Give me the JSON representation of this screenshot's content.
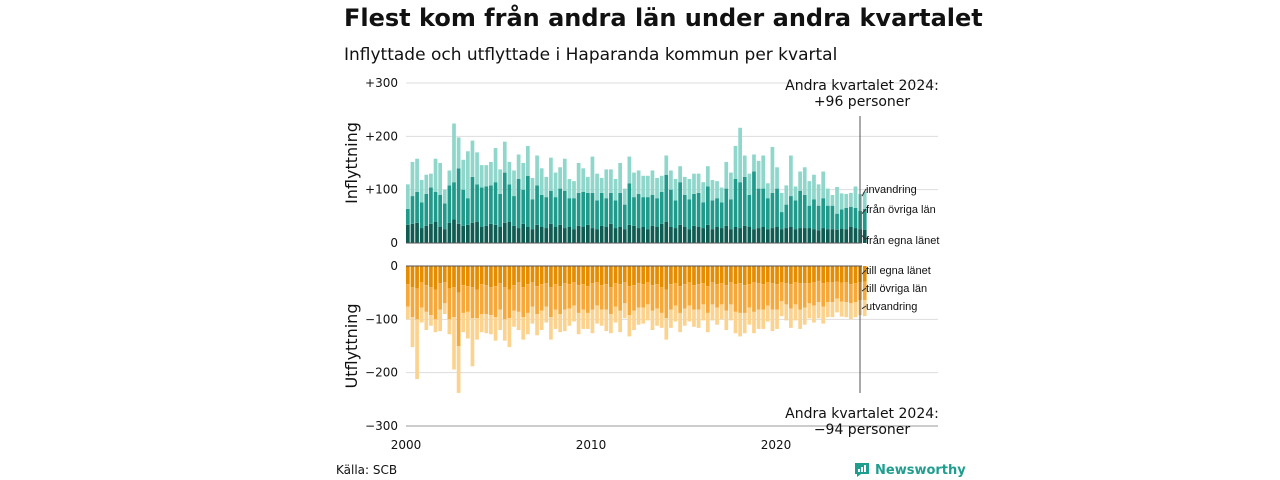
{
  "title": "Flest kom från andra län under andra kvartalet",
  "subtitle": "Inflyttade och utflyttade i Haparanda kommun per kvartal",
  "source": "Källa: SCB",
  "brand": "Newsworthy",
  "colors": {
    "in_egna": "#0f5c52",
    "in_ovriga": "#1f9a8b",
    "in_invandring": "#8fd6cb",
    "out_egna": "#e58c00",
    "out_ovriga": "#f6a93a",
    "out_utvandring": "#fbd38f",
    "brand": "#1f9e8f"
  },
  "chart_data": [
    {
      "type": "bar",
      "stacked": true,
      "ylabel": "Inflyttning",
      "ylim": [
        0,
        300
      ],
      "yticks": [
        "0",
        "+100",
        "+200",
        "+300"
      ],
      "xticks": [
        "2000",
        "2010",
        "2020"
      ],
      "annotation": [
        "Andra kvartalet 2024:",
        "+96 personer"
      ],
      "series": [
        {
          "name": "från egna länet",
          "values": [
            34,
            36,
            38,
            28,
            32,
            36,
            40,
            30,
            26,
            38,
            44,
            36,
            32,
            34,
            38,
            40,
            30,
            32,
            36,
            34,
            30,
            38,
            40,
            32,
            28,
            36,
            30,
            26,
            34,
            30,
            28,
            36,
            30,
            34,
            28,
            30,
            26,
            32,
            30,
            34,
            28,
            26,
            32,
            30,
            36,
            28,
            30,
            26,
            34,
            32,
            28,
            30,
            26,
            32,
            30,
            36,
            40,
            30,
            28,
            34,
            30,
            26,
            32,
            30,
            28,
            34,
            26,
            30,
            28,
            32,
            26,
            30,
            28,
            32,
            30,
            26,
            28,
            30,
            26,
            28,
            30,
            26,
            28,
            30,
            26,
            28,
            28,
            28,
            26,
            24,
            28,
            26,
            26,
            25,
            27,
            26,
            30,
            28,
            26,
            25
          ]
        },
        {
          "name": "från övriga län",
          "values": [
            30,
            52,
            58,
            48,
            60,
            68,
            56,
            60,
            48,
            70,
            70,
            104,
            68,
            50,
            86,
            70,
            74,
            74,
            72,
            80,
            62,
            94,
            70,
            56,
            92,
            64,
            96,
            56,
            74,
            60,
            58,
            62,
            56,
            68,
            70,
            54,
            58,
            62,
            66,
            60,
            66,
            54,
            62,
            54,
            58,
            52,
            64,
            46,
            78,
            54,
            64,
            56,
            60,
            58,
            54,
            60,
            88,
            70,
            52,
            80,
            60,
            56,
            60,
            64,
            48,
            72,
            54,
            54,
            48,
            70,
            56,
            90,
            86,
            92,
            60,
            108,
            74,
            72,
            58,
            66,
            72,
            32,
            44,
            58,
            54,
            70,
            62,
            42,
            56,
            46,
            56,
            44,
            44,
            30,
            36,
            40,
            38,
            38,
            34,
            39
          ]
        },
        {
          "name": "invandring",
          "values": [
            46,
            64,
            62,
            42,
            36,
            26,
            62,
            60,
            26,
            28,
            110,
            58,
            56,
            88,
            68,
            60,
            42,
            40,
            44,
            64,
            46,
            58,
            42,
            48,
            46,
            50,
            56,
            40,
            56,
            50,
            38,
            62,
            46,
            40,
            60,
            36,
            32,
            56,
            44,
            30,
            68,
            50,
            28,
            54,
            44,
            40,
            56,
            30,
            50,
            46,
            44,
            40,
            40,
            46,
            38,
            30,
            36,
            36,
            40,
            30,
            34,
            38,
            38,
            36,
            38,
            38,
            38,
            32,
            28,
            50,
            50,
            62,
            102,
            40,
            40,
            32,
            52,
            62,
            28,
            86,
            40,
            36,
            36,
            76,
            26,
            36,
            52,
            46,
            46,
            40,
            50,
            32,
            20,
            50,
            30,
            26,
            26,
            40,
            32,
            32
          ]
        }
      ]
    },
    {
      "type": "bar",
      "stacked": true,
      "ylabel": "Utflyttning",
      "ylim": [
        -300,
        0
      ],
      "yticks": [
        "0",
        "−100",
        "−200",
        "−300"
      ],
      "xticks": [
        "2000",
        "2010",
        "2020"
      ],
      "annotation": [
        "Andra kvartalet 2024:",
        "−94 personer"
      ],
      "series": [
        {
          "name": "till egna länet",
          "values": [
            -34,
            -40,
            -42,
            -30,
            -36,
            -40,
            -44,
            -32,
            -30,
            -42,
            -40,
            -50,
            -36,
            -38,
            -40,
            -44,
            -34,
            -36,
            -40,
            -38,
            -32,
            -40,
            -44,
            -36,
            -30,
            -40,
            -34,
            -30,
            -38,
            -34,
            -32,
            -40,
            -34,
            -38,
            -32,
            -34,
            -30,
            -36,
            -34,
            -38,
            -32,
            -30,
            -36,
            -34,
            -40,
            -32,
            -34,
            -30,
            -38,
            -36,
            -32,
            -34,
            -30,
            -36,
            -34,
            -40,
            -44,
            -34,
            -32,
            -38,
            -34,
            -30,
            -36,
            -34,
            -32,
            -38,
            -30,
            -34,
            -32,
            -36,
            -30,
            -34,
            -32,
            -36,
            -34,
            -30,
            -32,
            -34,
            -30,
            -32,
            -34,
            -30,
            -32,
            -34,
            -30,
            -32,
            -32,
            -32,
            -30,
            -28,
            -32,
            -30,
            -30,
            -29,
            -31,
            -30,
            -34,
            -32,
            -30,
            -29
          ]
        },
        {
          "name": "till övriga län",
          "values": [
            -42,
            -56,
            -58,
            -48,
            -50,
            -52,
            -56,
            -50,
            -40,
            -58,
            -56,
            -100,
            -52,
            -48,
            -58,
            -54,
            -56,
            -54,
            -52,
            -58,
            -50,
            -60,
            -54,
            -48,
            -56,
            -56,
            -54,
            -46,
            -52,
            -50,
            -44,
            -56,
            -48,
            -52,
            -50,
            -46,
            -44,
            -52,
            -48,
            -50,
            -50,
            -44,
            -46,
            -48,
            -50,
            -44,
            -50,
            -40,
            -54,
            -48,
            -46,
            -44,
            -42,
            -48,
            -46,
            -48,
            -54,
            -48,
            -42,
            -50,
            -46,
            -44,
            -46,
            -48,
            -40,
            -50,
            -42,
            -44,
            -40,
            -48,
            -42,
            -52,
            -56,
            -52,
            -44,
            -56,
            -50,
            -48,
            -44,
            -50,
            -48,
            -36,
            -40,
            -46,
            -42,
            -50,
            -46,
            -38,
            -44,
            -40,
            -44,
            -38,
            -38,
            -32,
            -36,
            -38,
            -36,
            -36,
            -34,
            -35
          ]
        },
        {
          "name": "utvandring",
          "values": [
            -24,
            -56,
            -112,
            -28,
            -34,
            -20,
            -24,
            -40,
            -20,
            -28,
            -98,
            -88,
            -36,
            -50,
            -90,
            -40,
            -34,
            -36,
            -36,
            -44,
            -38,
            -40,
            -54,
            -30,
            -34,
            -42,
            -40,
            -32,
            -40,
            -36,
            -30,
            -42,
            -36,
            -34,
            -40,
            -32,
            -30,
            -40,
            -36,
            -30,
            -44,
            -34,
            -30,
            -40,
            -36,
            -30,
            -40,
            -28,
            -40,
            -36,
            -32,
            -30,
            -30,
            -36,
            -32,
            -28,
            -40,
            -34,
            -30,
            -36,
            -32,
            -30,
            -32,
            -34,
            -30,
            -36,
            -30,
            -32,
            -28,
            -36,
            -30,
            -40,
            -44,
            -38,
            -32,
            -40,
            -36,
            -36,
            -30,
            -40,
            -36,
            -28,
            -30,
            -36,
            -30,
            -36,
            -32,
            -28,
            -32,
            -30,
            -32,
            -28,
            -28,
            -26,
            -28,
            -28,
            -30,
            -28,
            -28,
            -30
          ]
        }
      ]
    }
  ]
}
